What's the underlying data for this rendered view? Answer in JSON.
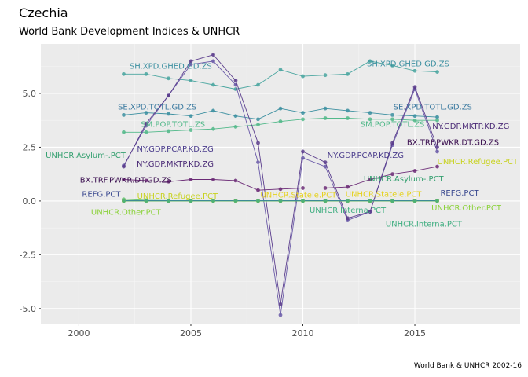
{
  "chart_data": {
    "type": "line",
    "title": "Czechia",
    "subtitle": "World Bank Development Indices & UNHCR",
    "caption": "World Bank & UNHCR 2002-16",
    "xlabel": "",
    "ylabel": "",
    "xlim": [
      1998.3,
      2019.7
    ],
    "ylim": [
      -5.7,
      7.3
    ],
    "x_ticks": [
      2000,
      2005,
      2010,
      2015
    ],
    "y_ticks": [
      -5.0,
      -2.5,
      0.0,
      2.5,
      5.0
    ],
    "y_tick_labels": [
      "-5.0",
      "-2.5",
      "0.0",
      "2.5",
      "5.0"
    ],
    "grid": true,
    "background": "#ebebeb",
    "series": [
      {
        "name": "SH.XPD.GHED.GD.ZS",
        "color": "#4aa6a0",
        "x": [
          2002,
          2003,
          2004,
          2005,
          2006,
          2007,
          2008,
          2009,
          2010,
          2011,
          2012,
          2013,
          2014,
          2015,
          2016
        ],
        "y": [
          5.9,
          5.9,
          5.7,
          5.6,
          5.4,
          5.2,
          5.4,
          6.1,
          5.8,
          5.85,
          5.9,
          6.5,
          6.3,
          6.05,
          6.0
        ]
      },
      {
        "name": "SE.XPD.TOTL.GD.ZS",
        "color": "#3b8fa0",
        "x": [
          2002,
          2003,
          2004,
          2005,
          2006,
          2007,
          2008,
          2009,
          2010,
          2011,
          2012,
          2013,
          2014,
          2015,
          2016
        ],
        "y": [
          4.0,
          4.1,
          4.05,
          3.95,
          4.2,
          3.95,
          3.8,
          4.3,
          4.1,
          4.3,
          4.2,
          4.1,
          4.0,
          3.95,
          3.9
        ]
      },
      {
        "name": "SM.POP.TOTL.ZS",
        "color": "#52b98a",
        "x": [
          2002,
          2003,
          2004,
          2005,
          2006,
          2007,
          2008,
          2009,
          2010,
          2011,
          2012,
          2013,
          2014,
          2015,
          2016
        ],
        "y": [
          3.2,
          3.2,
          3.25,
          3.3,
          3.35,
          3.45,
          3.55,
          3.7,
          3.8,
          3.85,
          3.85,
          3.8,
          3.8,
          3.75,
          3.75
        ]
      },
      {
        "name": "NY.GDP.PCAP.KD.ZG",
        "color": "#6a5aa8",
        "x": [
          2002,
          2003,
          2004,
          2005,
          2006,
          2007,
          2008,
          2009,
          2010,
          2011,
          2012,
          2013,
          2014,
          2015,
          2016
        ],
        "y": [
          1.65,
          3.5,
          4.9,
          6.35,
          6.5,
          5.4,
          1.8,
          -5.3,
          2.0,
          1.6,
          -0.9,
          -0.5,
          2.6,
          5.2,
          2.3
        ]
      },
      {
        "name": "NY.GDP.MKTP.KD.ZG",
        "color": "#5a3c8c",
        "x": [
          2002,
          2003,
          2004,
          2005,
          2006,
          2007,
          2008,
          2009,
          2010,
          2011,
          2012,
          2013,
          2014,
          2015,
          2016
        ],
        "y": [
          1.6,
          3.6,
          4.9,
          6.5,
          6.8,
          5.6,
          2.7,
          -4.8,
          2.3,
          1.8,
          -0.8,
          -0.5,
          2.7,
          5.3,
          2.5
        ]
      },
      {
        "name": "BX.TRF.PWKR.DT.GD.ZS",
        "color": "#6b2a76",
        "x": [
          2002,
          2003,
          2004,
          2005,
          2006,
          2007,
          2008,
          2009,
          2010,
          2011,
          2012,
          2013,
          2014,
          2015,
          2016
        ],
        "y": [
          1.0,
          0.95,
          0.9,
          1.0,
          1.0,
          0.95,
          0.5,
          0.55,
          0.6,
          0.6,
          0.65,
          1.0,
          1.25,
          1.4,
          1.6
        ]
      },
      {
        "name": "UNHCR.Asylum-.PCT",
        "color": "#62c26a",
        "x": [
          2002,
          2003,
          2004,
          2005,
          2006,
          2007,
          2008,
          2009,
          2010,
          2011,
          2012,
          2013,
          2014,
          2015,
          2016
        ],
        "y": [
          0.08,
          0.03,
          0.02,
          0.01,
          0.01,
          0.01,
          0.01,
          0.01,
          0.01,
          0.01,
          0.01,
          0.01,
          0.01,
          0.01,
          0.02
        ]
      },
      {
        "name": "REFG.PCT",
        "color": "#3b6aa8",
        "x": [
          2002,
          2003,
          2004,
          2005,
          2006,
          2007,
          2008,
          2009,
          2010,
          2011,
          2012,
          2013,
          2014,
          2015,
          2016
        ],
        "y": [
          0.02,
          0.02,
          0.02,
          0.02,
          0.02,
          0.02,
          0.02,
          0.02,
          0.02,
          0.02,
          0.02,
          0.02,
          0.02,
          0.02,
          0.02
        ]
      },
      {
        "name": "UNHCR.Refugee.PCT",
        "color": "#c8d21e",
        "x": [
          2002,
          2003,
          2004,
          2005,
          2006,
          2007,
          2008,
          2009,
          2010,
          2011,
          2012,
          2013,
          2014,
          2015,
          2016
        ],
        "y": [
          0.0,
          0.0,
          0.0,
          0.0,
          0.0,
          0.0,
          0.0,
          0.0,
          0.0,
          0.0,
          0.0,
          0.0,
          0.0,
          0.0,
          0.0
        ]
      },
      {
        "name": "UNHCR.Other.PCT",
        "color": "#8bd23a",
        "x": [
          2002,
          2003,
          2004,
          2005,
          2006,
          2007,
          2008,
          2009,
          2010,
          2011,
          2012,
          2013,
          2014,
          2015,
          2016
        ],
        "y": [
          0.0,
          0.0,
          0.0,
          0.0,
          0.0,
          0.0,
          0.0,
          0.0,
          0.0,
          0.0,
          0.0,
          0.0,
          0.0,
          0.0,
          0.0
        ]
      },
      {
        "name": "UNHCR.Statele.PCT",
        "color": "#e6d21e",
        "x": [
          2002,
          2003,
          2004,
          2005,
          2006,
          2007,
          2008,
          2009,
          2010,
          2011,
          2012,
          2013,
          2014,
          2015,
          2016
        ],
        "y": [
          0.0,
          0.0,
          0.0,
          0.0,
          0.0,
          0.0,
          0.0,
          0.0,
          0.0,
          0.0,
          0.0,
          0.0,
          0.0,
          0.0,
          0.0
        ]
      },
      {
        "name": "UNHCR.Interna.PCT",
        "color": "#3fae80",
        "x": [
          2002,
          2003,
          2004,
          2005,
          2006,
          2007,
          2008,
          2009,
          2010,
          2011,
          2012,
          2013,
          2014,
          2015,
          2016
        ],
        "y": [
          0.0,
          0.0,
          0.0,
          0.0,
          0.0,
          0.0,
          0.0,
          0.0,
          0.0,
          0.0,
          0.0,
          0.0,
          0.0,
          0.0,
          0.0
        ]
      }
    ],
    "annotations": [
      {
        "text": "SH.XPD.GHED.GD.ZS",
        "color": "#3b8fa0",
        "x": 2004.1,
        "y": 6.3
      },
      {
        "text": "SH.XPD.GHED.GD.ZS",
        "color": "#3b8fa0",
        "x": 2014.7,
        "y": 6.4
      },
      {
        "text": "SE.XPD.TOTL.GD.ZS",
        "color": "#3b7aa0",
        "x": 2003.5,
        "y": 4.4
      },
      {
        "text": "SE.XPD.TOTL.GD.ZS",
        "color": "#3b7aa0",
        "x": 2015.8,
        "y": 4.4
      },
      {
        "text": "SM.POP.TOTL.ZS",
        "color": "#52b98a",
        "x": 2004.2,
        "y": 3.6
      },
      {
        "text": "SM.POP.TOTL.ZS",
        "color": "#52b98a",
        "x": 2014.0,
        "y": 3.6
      },
      {
        "text": "NY.GDP.PCAP.KD.ZG",
        "color": "#4a3c8c",
        "x": 2004.3,
        "y": 2.45
      },
      {
        "text": "NY.GDP.PCAP.KD.ZG",
        "color": "#4a3c8c",
        "x": 2012.8,
        "y": 2.15
      },
      {
        "text": "NY.GDP.MKTP.KD.ZG",
        "color": "#4a2a76",
        "x": 2004.3,
        "y": 1.75
      },
      {
        "text": "NY.GDP.MKTP.KD.ZG",
        "color": "#4a2a76",
        "x": 2017.5,
        "y": 3.5
      },
      {
        "text": "BX.TRF.PWKR.DT.GD.ZS",
        "color": "#3b0f50",
        "x": 2002.1,
        "y": 1.0
      },
      {
        "text": "BX.TRF.PWKR.DT.GD.ZS",
        "color": "#3b0f50",
        "x": 2016.7,
        "y": 2.75
      },
      {
        "text": "UNHCR.Asylum-.PCT",
        "color": "#35a070",
        "x": 2000.3,
        "y": 2.15
      },
      {
        "text": "UNHCR.Asylum-.PCT",
        "color": "#35a070",
        "x": 2014.5,
        "y": 1.05
      },
      {
        "text": "REFG.PCT",
        "color": "#3b4a90",
        "x": 2001.0,
        "y": 0.35
      },
      {
        "text": "REFG.PCT",
        "color": "#3b4a90",
        "x": 2017.0,
        "y": 0.4
      },
      {
        "text": "UNHCR.Refugee.PCT",
        "color": "#c8d21e",
        "x": 2004.4,
        "y": 0.25
      },
      {
        "text": "UNHCR.Refugee.PCT",
        "color": "#c8d21e",
        "x": 2017.8,
        "y": 1.85
      },
      {
        "text": "UNHCR.Other.PCT",
        "color": "#8bd23a",
        "x": 2002.1,
        "y": -0.5
      },
      {
        "text": "UNHCR.Other.PCT",
        "color": "#8bd23a",
        "x": 2017.3,
        "y": -0.3
      },
      {
        "text": "UNHCR.Statele.PCT",
        "color": "#e6d21e",
        "x": 2009.8,
        "y": 0.3
      },
      {
        "text": "UNHCR.Statele.PCT",
        "color": "#e6d21e",
        "x": 2013.6,
        "y": 0.35
      },
      {
        "text": "UNHCR.Interna.PCT",
        "color": "#3fae80",
        "x": 2012.0,
        "y": -0.4
      },
      {
        "text": "UNHCR.Interna.PCT",
        "color": "#3fae80",
        "x": 2015.4,
        "y": -1.05
      }
    ]
  }
}
